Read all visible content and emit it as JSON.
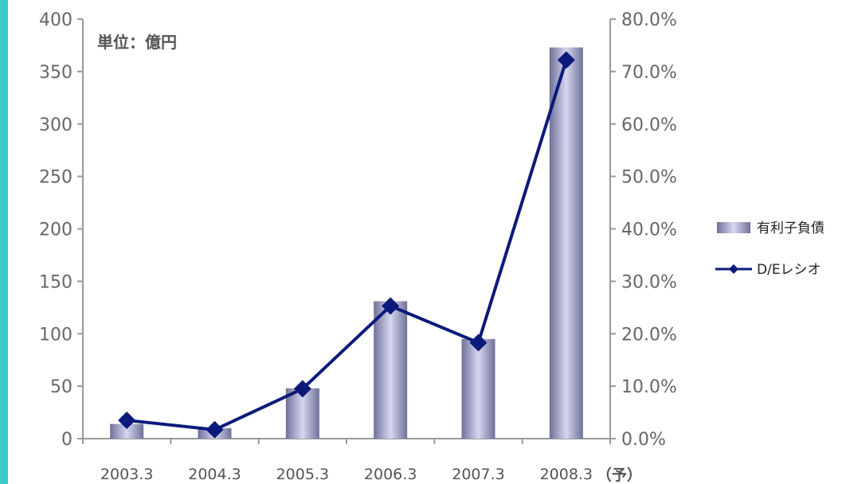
{
  "chart_data": {
    "type": "bar",
    "unit_label": "単位：億円",
    "categories": [
      "2003.3",
      "2004.3",
      "2005.3",
      "2006.3",
      "2007.3",
      "2008.3"
    ],
    "x_suffix": "（予）",
    "series": [
      {
        "name": "有利子負債",
        "kind": "bar",
        "axis": "left",
        "values": [
          14,
          10,
          48,
          131,
          95,
          373
        ],
        "color": "#9a9cc8"
      },
      {
        "name": "D/Eレシオ",
        "kind": "line",
        "axis": "right",
        "values": [
          0.035,
          0.017,
          0.095,
          0.253,
          0.183,
          0.722
        ],
        "color": "#0b1a7a"
      }
    ],
    "y_left": {
      "min": 0,
      "max": 400,
      "ticks": [
        "0",
        "50",
        "100",
        "150",
        "200",
        "250",
        "300",
        "350",
        "400"
      ]
    },
    "y_right": {
      "min": 0,
      "max": 0.8,
      "ticks": [
        "0.0%",
        "10.0%",
        "20.0%",
        "30.0%",
        "40.0%",
        "50.0%",
        "60.0%",
        "70.0%",
        "80.0%"
      ]
    },
    "grid": false,
    "legend_position": "right"
  }
}
